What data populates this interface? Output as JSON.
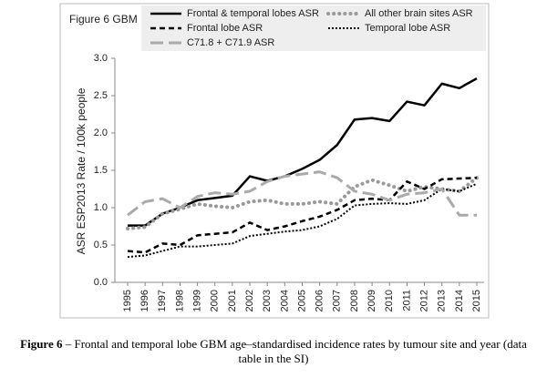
{
  "chart_data": {
    "type": "line",
    "title": "Figure 6  GBM",
    "y_label": "ASR  ESP2013  Rate / 100k people",
    "categories": [
      "1995",
      "1996",
      "1997",
      "1998",
      "1999",
      "2000",
      "2001",
      "2002",
      "2003",
      "2004",
      "2005",
      "2006",
      "2007",
      "2008",
      "2009",
      "2010",
      "2011",
      "2012",
      "2013",
      "2014",
      "2015"
    ],
    "ylim": [
      0,
      3
    ],
    "yticks": [
      {
        "value": 0,
        "label": "0.0"
      },
      {
        "value": 0.5,
        "label": "0.5"
      },
      {
        "value": 1,
        "label": "1.0"
      },
      {
        "value": 1.5,
        "label": "1.5"
      },
      {
        "value": 2,
        "label": "2.0"
      },
      {
        "value": 2.5,
        "label": "2.5"
      },
      {
        "value": 3,
        "label": "3.0"
      }
    ],
    "grid": false,
    "legend": "top",
    "series": [
      {
        "name": "Frontal & temporal lobes ASR",
        "color": "#000000",
        "dash": "solid",
        "values": [
          0.76,
          0.76,
          0.92,
          1.0,
          1.1,
          1.13,
          1.16,
          1.42,
          1.36,
          1.42,
          1.52,
          1.64,
          1.84,
          2.18,
          2.2,
          2.16,
          2.42,
          2.37,
          2.66,
          2.6,
          2.73
        ]
      },
      {
        "name": "All other brain sites ASR",
        "color": "#999999",
        "dash": "dotted-round",
        "values": [
          0.72,
          0.74,
          0.92,
          0.98,
          1.05,
          1.02,
          1.0,
          1.08,
          1.1,
          1.05,
          1.05,
          1.08,
          1.05,
          1.28,
          1.37,
          1.3,
          1.22,
          1.28,
          1.25,
          1.22,
          1.4
        ]
      },
      {
        "name": "Frontal lobe ASR",
        "color": "#000000",
        "dash": "dashed",
        "values": [
          0.42,
          0.4,
          0.52,
          0.5,
          0.63,
          0.65,
          0.67,
          0.8,
          0.7,
          0.75,
          0.82,
          0.88,
          0.97,
          1.1,
          1.12,
          1.1,
          1.35,
          1.25,
          1.38,
          1.39,
          1.4
        ]
      },
      {
        "name": "Temporal lobe ASR",
        "color": "#000000",
        "dash": "dotted",
        "values": [
          0.34,
          0.36,
          0.42,
          0.48,
          0.48,
          0.5,
          0.52,
          0.62,
          0.65,
          0.68,
          0.7,
          0.75,
          0.85,
          1.03,
          1.05,
          1.06,
          1.05,
          1.1,
          1.25,
          1.22,
          1.32
        ]
      },
      {
        "name": "C71.8 + C71.9 ASR",
        "color": "#aaaaaa",
        "dash": "longdash",
        "values": [
          0.9,
          1.08,
          1.12,
          1.0,
          1.15,
          1.2,
          1.18,
          1.22,
          1.35,
          1.42,
          1.45,
          1.48,
          1.4,
          1.22,
          1.18,
          1.1,
          1.18,
          1.2,
          1.25,
          0.9,
          0.9
        ]
      }
    ],
    "caption": {
      "label": "Figure 6",
      "text": " – Frontal and temporal lobe GBM age–standardised incidence rates by tumour site and year (data table in the SI)"
    }
  }
}
